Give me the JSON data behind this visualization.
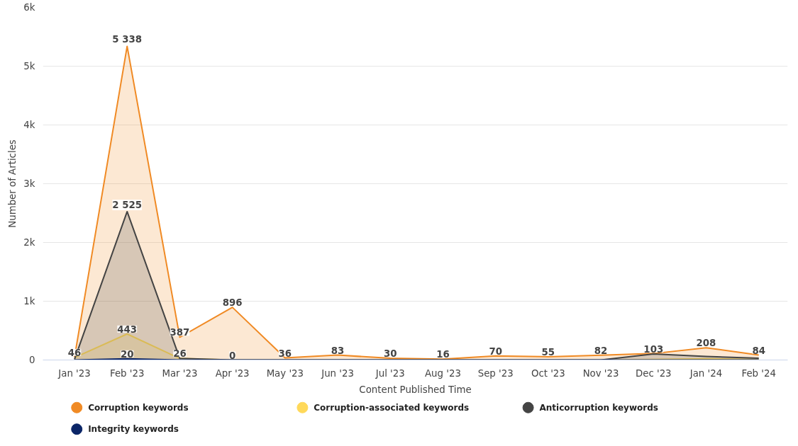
{
  "chart_data": {
    "type": "area",
    "xlabel": "Content Published Time",
    "ylabel": "Number of Articles",
    "categories": [
      "Jan '23",
      "Feb '23",
      "Mar '23",
      "Apr '23",
      "May '23",
      "Jun '23",
      "Jul '23",
      "Aug '23",
      "Sep '23",
      "Oct '23",
      "Nov '23",
      "Dec '23",
      "Jan '24",
      "Feb '24"
    ],
    "series": [
      {
        "name": "Corruption keywords",
        "color": "#f08a24",
        "values": [
          46,
          5338,
          387,
          896,
          36,
          83,
          30,
          16,
          70,
          55,
          82,
          110,
          208,
          84
        ],
        "value_labels": [
          "46",
          "5 338",
          "387",
          "896",
          "36",
          "83",
          "30",
          "16",
          "70",
          "55",
          "82",
          null,
          "208",
          "84"
        ]
      },
      {
        "name": "Corruption-associated keywords",
        "color": "#ffd95a",
        "values": [
          40,
          443,
          26,
          0,
          0,
          0,
          0,
          0,
          0,
          0,
          0,
          10,
          20,
          10
        ],
        "value_labels": [
          null,
          "443",
          null,
          null,
          null,
          null,
          null,
          null,
          null,
          null,
          null,
          null,
          null,
          null
        ]
      },
      {
        "name": "Anticorruption keywords",
        "color": "#444444",
        "values": [
          10,
          2525,
          26,
          0,
          0,
          0,
          0,
          0,
          0,
          0,
          0,
          103,
          60,
          30
        ],
        "value_labels": [
          null,
          "2 525",
          "26",
          null,
          null,
          null,
          null,
          null,
          null,
          null,
          null,
          "103",
          null,
          null
        ]
      },
      {
        "name": "Integrity keywords",
        "color": "#0b2567",
        "values": [
          0,
          20,
          0,
          0,
          0,
          0,
          0,
          0,
          0,
          0,
          0,
          0,
          0,
          0
        ],
        "value_labels": [
          null,
          "20",
          null,
          "0",
          null,
          null,
          null,
          null,
          null,
          null,
          null,
          null,
          null,
          null
        ]
      }
    ],
    "ylim": [
      0,
      6000
    ],
    "yticks": [
      0,
      {
        "value": 1000,
        "label": "1k"
      },
      {
        "value": 2000,
        "label": "2k"
      },
      {
        "value": 3000,
        "label": "3k"
      },
      {
        "value": 4000,
        "label": "4k"
      },
      {
        "value": 5000,
        "label": "5k"
      },
      {
        "value": 6000,
        "label": "6k"
      }
    ],
    "grid": "y",
    "legend": "bottom"
  }
}
